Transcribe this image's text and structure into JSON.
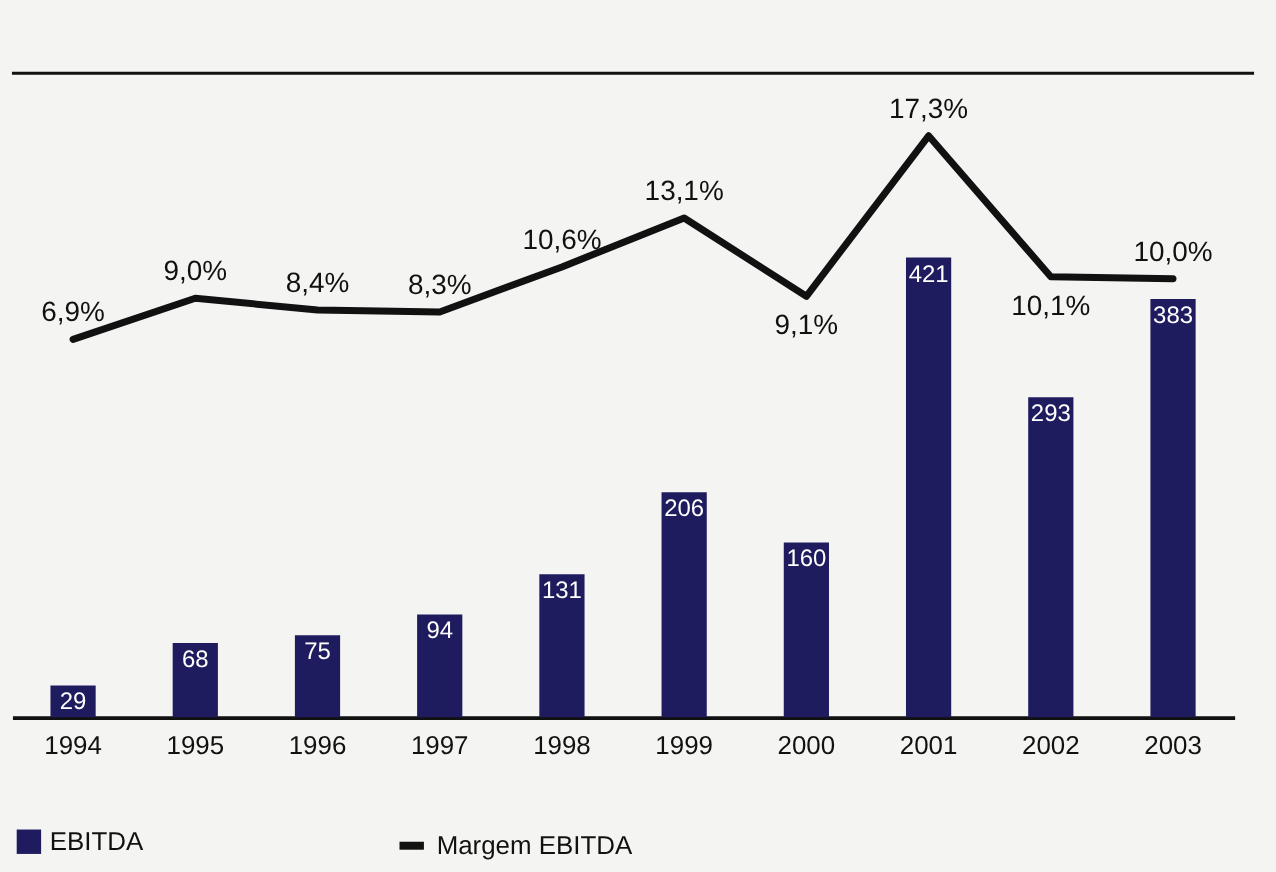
{
  "chart_data": {
    "type": "bar",
    "categories": [
      "1994",
      "1995",
      "1996",
      "1997",
      "1998",
      "1999",
      "2000",
      "2001",
      "2002",
      "2003"
    ],
    "series": [
      {
        "name": "EBITDA",
        "color": "#1e1c5e",
        "values": [
          29,
          68,
          75,
          94,
          131,
          206,
          160,
          421,
          293,
          383
        ],
        "value_labels": [
          "29",
          "68",
          "75",
          "94",
          "131",
          "206",
          "160",
          "421",
          "293",
          "383"
        ]
      },
      {
        "name": "Margem EBITDA",
        "type": "line",
        "axis": "y2",
        "color": "#111111",
        "values": [
          6.9,
          9.0,
          8.4,
          8.3,
          10.6,
          13.1,
          9.1,
          17.3,
          10.1,
          10.0
        ],
        "value_labels": [
          "6,9%",
          "9,0%",
          "8,4%",
          "8,3%",
          "10,6%",
          "13,1%",
          "9,1%",
          "17,3%",
          "10,1%",
          "10,0%"
        ]
      }
    ],
    "ylim": [
      0,
      590
    ],
    "y2lim": [
      -12.4,
      20.5
    ],
    "tick_labels": "x",
    "grid": false,
    "legend": "bottom"
  }
}
